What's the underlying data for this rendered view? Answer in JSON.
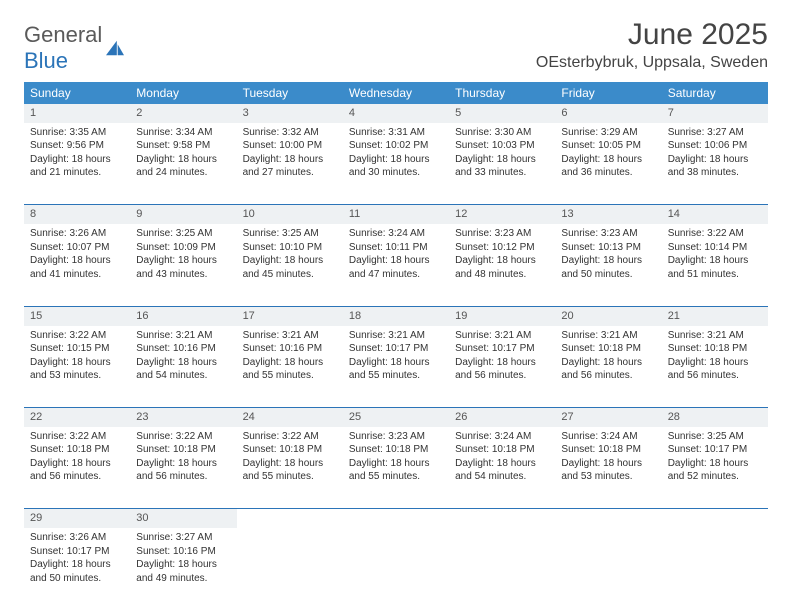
{
  "brand": {
    "part1": "General",
    "part2": "Blue"
  },
  "title": "June 2025",
  "location": "OEsterbybruk, Uppsala, Sweden",
  "colors": {
    "header_bg": "#3b8bca",
    "header_text": "#ffffff",
    "daynum_bg": "#eef1f3",
    "border": "#2b74b8",
    "text": "#333333",
    "brand_gray": "#5a5a5a",
    "brand_blue": "#2b74b8"
  },
  "weekdays": [
    "Sunday",
    "Monday",
    "Tuesday",
    "Wednesday",
    "Thursday",
    "Friday",
    "Saturday"
  ],
  "weeks": [
    [
      {
        "n": "1",
        "sr": "3:35 AM",
        "ss": "9:56 PM",
        "dl": "18 hours and 21 minutes."
      },
      {
        "n": "2",
        "sr": "3:34 AM",
        "ss": "9:58 PM",
        "dl": "18 hours and 24 minutes."
      },
      {
        "n": "3",
        "sr": "3:32 AM",
        "ss": "10:00 PM",
        "dl": "18 hours and 27 minutes."
      },
      {
        "n": "4",
        "sr": "3:31 AM",
        "ss": "10:02 PM",
        "dl": "18 hours and 30 minutes."
      },
      {
        "n": "5",
        "sr": "3:30 AM",
        "ss": "10:03 PM",
        "dl": "18 hours and 33 minutes."
      },
      {
        "n": "6",
        "sr": "3:29 AM",
        "ss": "10:05 PM",
        "dl": "18 hours and 36 minutes."
      },
      {
        "n": "7",
        "sr": "3:27 AM",
        "ss": "10:06 PM",
        "dl": "18 hours and 38 minutes."
      }
    ],
    [
      {
        "n": "8",
        "sr": "3:26 AM",
        "ss": "10:07 PM",
        "dl": "18 hours and 41 minutes."
      },
      {
        "n": "9",
        "sr": "3:25 AM",
        "ss": "10:09 PM",
        "dl": "18 hours and 43 minutes."
      },
      {
        "n": "10",
        "sr": "3:25 AM",
        "ss": "10:10 PM",
        "dl": "18 hours and 45 minutes."
      },
      {
        "n": "11",
        "sr": "3:24 AM",
        "ss": "10:11 PM",
        "dl": "18 hours and 47 minutes."
      },
      {
        "n": "12",
        "sr": "3:23 AM",
        "ss": "10:12 PM",
        "dl": "18 hours and 48 minutes."
      },
      {
        "n": "13",
        "sr": "3:23 AM",
        "ss": "10:13 PM",
        "dl": "18 hours and 50 minutes."
      },
      {
        "n": "14",
        "sr": "3:22 AM",
        "ss": "10:14 PM",
        "dl": "18 hours and 51 minutes."
      }
    ],
    [
      {
        "n": "15",
        "sr": "3:22 AM",
        "ss": "10:15 PM",
        "dl": "18 hours and 53 minutes."
      },
      {
        "n": "16",
        "sr": "3:21 AM",
        "ss": "10:16 PM",
        "dl": "18 hours and 54 minutes."
      },
      {
        "n": "17",
        "sr": "3:21 AM",
        "ss": "10:16 PM",
        "dl": "18 hours and 55 minutes."
      },
      {
        "n": "18",
        "sr": "3:21 AM",
        "ss": "10:17 PM",
        "dl": "18 hours and 55 minutes."
      },
      {
        "n": "19",
        "sr": "3:21 AM",
        "ss": "10:17 PM",
        "dl": "18 hours and 56 minutes."
      },
      {
        "n": "20",
        "sr": "3:21 AM",
        "ss": "10:18 PM",
        "dl": "18 hours and 56 minutes."
      },
      {
        "n": "21",
        "sr": "3:21 AM",
        "ss": "10:18 PM",
        "dl": "18 hours and 56 minutes."
      }
    ],
    [
      {
        "n": "22",
        "sr": "3:22 AM",
        "ss": "10:18 PM",
        "dl": "18 hours and 56 minutes."
      },
      {
        "n": "23",
        "sr": "3:22 AM",
        "ss": "10:18 PM",
        "dl": "18 hours and 56 minutes."
      },
      {
        "n": "24",
        "sr": "3:22 AM",
        "ss": "10:18 PM",
        "dl": "18 hours and 55 minutes."
      },
      {
        "n": "25",
        "sr": "3:23 AM",
        "ss": "10:18 PM",
        "dl": "18 hours and 55 minutes."
      },
      {
        "n": "26",
        "sr": "3:24 AM",
        "ss": "10:18 PM",
        "dl": "18 hours and 54 minutes."
      },
      {
        "n": "27",
        "sr": "3:24 AM",
        "ss": "10:18 PM",
        "dl": "18 hours and 53 minutes."
      },
      {
        "n": "28",
        "sr": "3:25 AM",
        "ss": "10:17 PM",
        "dl": "18 hours and 52 minutes."
      }
    ],
    [
      {
        "n": "29",
        "sr": "3:26 AM",
        "ss": "10:17 PM",
        "dl": "18 hours and 50 minutes."
      },
      {
        "n": "30",
        "sr": "3:27 AM",
        "ss": "10:16 PM",
        "dl": "18 hours and 49 minutes."
      },
      null,
      null,
      null,
      null,
      null
    ]
  ],
  "labels": {
    "sunrise": "Sunrise:",
    "sunset": "Sunset:",
    "daylight": "Daylight:"
  }
}
